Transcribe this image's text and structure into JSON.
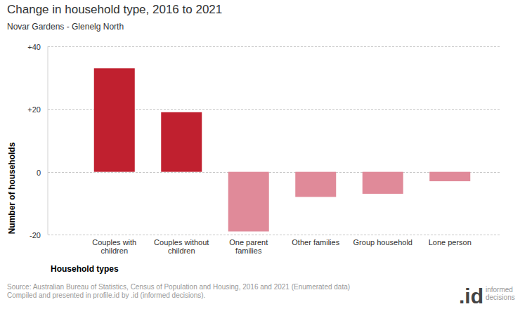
{
  "chart_data": {
    "type": "bar",
    "title": "Change in household type, 2016 to 2021",
    "subtitle": "Novar Gardens - Glenelg North",
    "x_label": "Household types",
    "y_label": "Number of households",
    "categories": [
      "Couples with children",
      "Couples without children",
      "One parent families",
      "Other families",
      "Group household",
      "Lone person"
    ],
    "values": [
      33,
      19,
      -19,
      -8,
      -7,
      -3
    ],
    "colors": [
      "#c0202f",
      "#c0202f",
      "#e08a99",
      "#e08a99",
      "#e08a99",
      "#e08a99"
    ],
    "ylim": [
      -20,
      40
    ],
    "yticks": [
      -20,
      0,
      {
        "value": 20,
        "label": "+20"
      },
      {
        "value": 40,
        "label": "+40"
      }
    ],
    "grid": true,
    "source": [
      "Source: Australian Bureau of Statistics, Census of Population and Housing, 2016 and 2021 (Enumerated data)",
      "Compiled and presented in profile.id by .id (informed decisions)."
    ],
    "logo": [
      ".id",
      "informed decisions"
    ]
  }
}
